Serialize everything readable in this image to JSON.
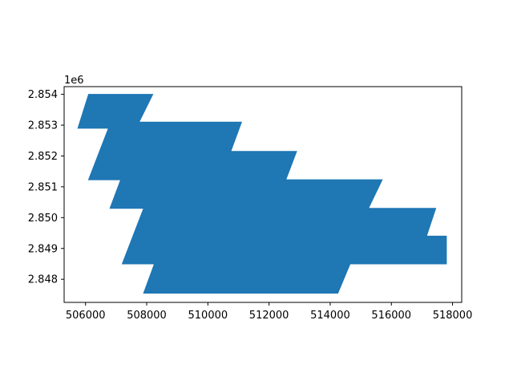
{
  "chart_data": {
    "type": "area",
    "title": "",
    "xlabel": "",
    "ylabel": "",
    "offset_text": "1e6",
    "xlim": [
      505300,
      518300
    ],
    "ylim": [
      2847250,
      2854250
    ],
    "x_ticks": [
      506000,
      508000,
      510000,
      512000,
      514000,
      516000,
      518000
    ],
    "x_tick_labels": [
      "506000",
      "508000",
      "510000",
      "512000",
      "514000",
      "516000",
      "518000"
    ],
    "y_ticks": [
      2848000,
      2849000,
      2850000,
      2851000,
      2852000,
      2853000,
      2854000
    ],
    "y_tick_labels": [
      "2.848",
      "2.849",
      "2.850",
      "2.851",
      "2.852",
      "2.853",
      "2.854"
    ],
    "grid": false,
    "fill_color": "#1f77b4",
    "polygon": [
      [
        506100,
        2854000
      ],
      [
        508200,
        2854000
      ],
      [
        507750,
        2853100
      ],
      [
        511100,
        2853100
      ],
      [
        510750,
        2852150
      ],
      [
        512900,
        2852150
      ],
      [
        512550,
        2851230
      ],
      [
        515700,
        2851230
      ],
      [
        515250,
        2850300
      ],
      [
        517450,
        2850300
      ],
      [
        517150,
        2849400
      ],
      [
        517800,
        2849400
      ],
      [
        517800,
        2848500
      ],
      [
        514650,
        2848500
      ],
      [
        514250,
        2847550
      ],
      [
        507900,
        2847550
      ],
      [
        508250,
        2848500
      ],
      [
        507200,
        2848500
      ],
      [
        507900,
        2850300
      ],
      [
        506800,
        2850300
      ],
      [
        507150,
        2851230
      ],
      [
        506100,
        2851230
      ],
      [
        506750,
        2852900
      ],
      [
        505750,
        2852900
      ]
    ]
  }
}
